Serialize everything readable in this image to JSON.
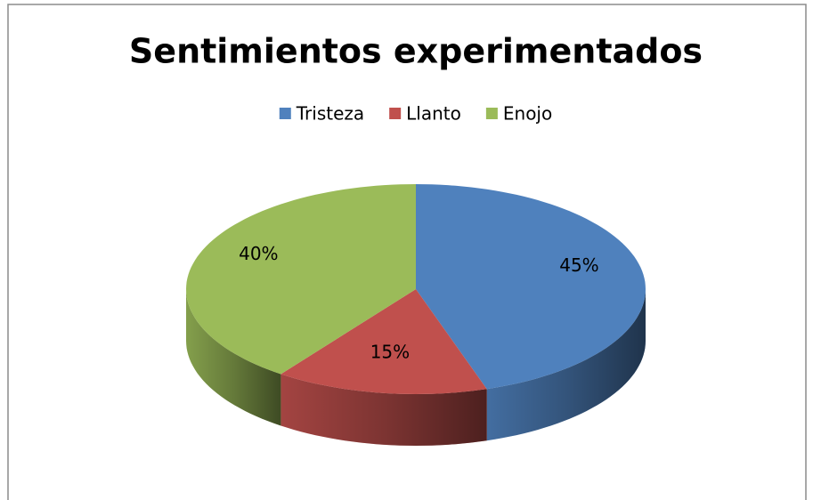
{
  "chart_data": {
    "type": "pie",
    "title": "Sentimientos experimentados",
    "categories": [
      "Tristeza",
      "Llanto",
      "Enojo"
    ],
    "values": [
      45,
      15,
      40
    ],
    "value_labels": [
      "45%",
      "15%",
      "40%"
    ],
    "colors": [
      "#4f81bd",
      "#c0504d",
      "#9bbb59"
    ],
    "legend": "top"
  }
}
